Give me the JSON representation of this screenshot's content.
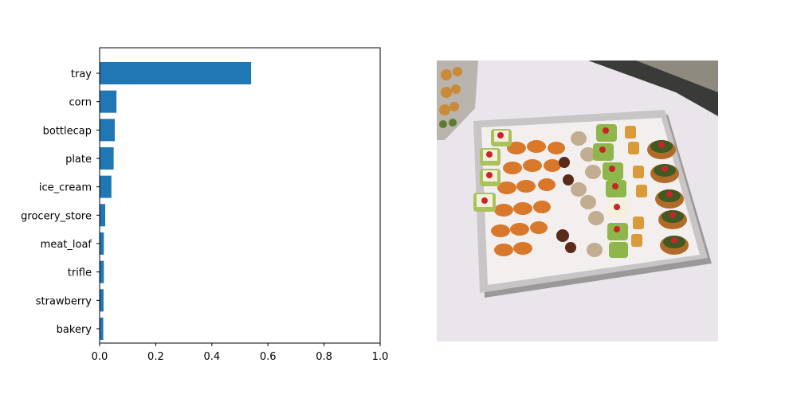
{
  "chart_data": {
    "type": "bar",
    "orientation": "horizontal",
    "categories": [
      "tray",
      "corn",
      "bottlecap",
      "plate",
      "ice_cream",
      "grocery_store",
      "meat_loaf",
      "trifle",
      "strawberry",
      "bakery"
    ],
    "values": [
      0.54,
      0.06,
      0.054,
      0.05,
      0.042,
      0.02,
      0.015,
      0.015,
      0.014,
      0.013
    ],
    "xlim": [
      0,
      1.0
    ],
    "xticks": [
      "0.0",
      "0.2",
      "0.4",
      "0.6",
      "0.8",
      "1.0"
    ],
    "bar_color": "#1f77b4",
    "grid": false,
    "title": "",
    "xlabel": "",
    "ylabel": ""
  },
  "image_panel": {
    "icon": "food-platter-photo",
    "colors": {
      "tablecloth": "#e9e5ea",
      "tray_silver": "#b8b6b8",
      "doily": "#f4f2f0",
      "skewer": "#d9772a",
      "canape_green": "#8fb64a",
      "tomato": "#c8252a",
      "sausage": "#b8a48c"
    }
  }
}
